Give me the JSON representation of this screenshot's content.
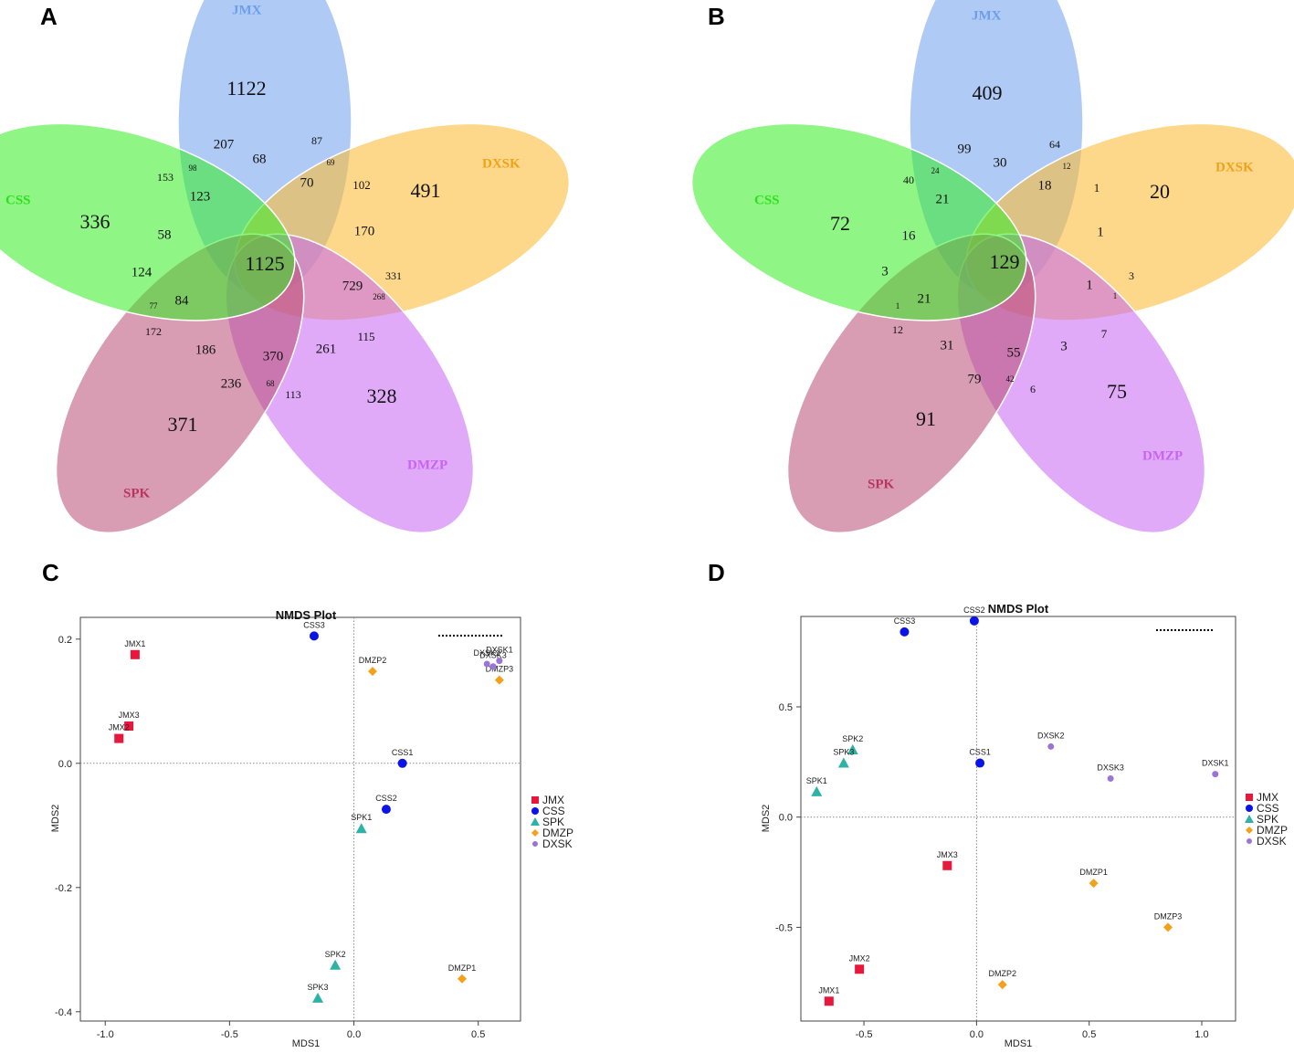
{
  "panels": [
    {
      "letter": "A"
    },
    {
      "letter": "B"
    },
    {
      "letter": "C"
    },
    {
      "letter": "D"
    }
  ],
  "chart_data": [
    {
      "type": "venn",
      "panel": "A",
      "sets": [
        {
          "name": "JMX",
          "color": "#6d9eeb",
          "unique": 1122
        },
        {
          "name": "DXSK",
          "color": "#fbbc3c",
          "unique": 491
        },
        {
          "name": "DMZP",
          "color": "#c764f2",
          "unique": 328
        },
        {
          "name": "SPK",
          "color": "#b84d72",
          "unique": 371
        },
        {
          "name": "CSS",
          "color": "#33ee22",
          "unique": 336
        }
      ],
      "core": 1125,
      "regions": [
        {
          "label": "207",
          "size": "m"
        },
        {
          "label": "87",
          "size": "s"
        },
        {
          "label": "153",
          "size": "s"
        },
        {
          "label": "98",
          "size": "xs"
        },
        {
          "label": "68",
          "size": "m"
        },
        {
          "label": "69",
          "size": "xs"
        },
        {
          "label": "102",
          "size": "s"
        },
        {
          "label": "123",
          "size": "m"
        },
        {
          "label": "70",
          "size": "m"
        },
        {
          "label": "58",
          "size": "m"
        },
        {
          "label": "170",
          "size": "m"
        },
        {
          "label": "124",
          "size": "m"
        },
        {
          "label": "729",
          "size": "m"
        },
        {
          "label": "331",
          "size": "s"
        },
        {
          "label": "77",
          "size": "xs"
        },
        {
          "label": "84",
          "size": "m"
        },
        {
          "label": "268",
          "size": "xs"
        },
        {
          "label": "172",
          "size": "s"
        },
        {
          "label": "186",
          "size": "m"
        },
        {
          "label": "370",
          "size": "m"
        },
        {
          "label": "261",
          "size": "m"
        },
        {
          "label": "115",
          "size": "s"
        },
        {
          "label": "236",
          "size": "m"
        },
        {
          "label": "68",
          "size": "xs"
        },
        {
          "label": "113",
          "size": "s"
        }
      ]
    },
    {
      "type": "venn",
      "panel": "B",
      "sets": [
        {
          "name": "JMX",
          "color": "#6d9eeb",
          "unique": 409
        },
        {
          "name": "DXSK",
          "color": "#fbbc3c",
          "unique": 20
        },
        {
          "name": "DMZP",
          "color": "#c764f2",
          "unique": 75
        },
        {
          "name": "SPK",
          "color": "#b84d72",
          "unique": 91
        },
        {
          "name": "CSS",
          "color": "#33ee22",
          "unique": 72
        }
      ],
      "core": 129,
      "regions": [
        {
          "label": "99",
          "size": "m"
        },
        {
          "label": "64",
          "size": "s"
        },
        {
          "label": "40",
          "size": "s"
        },
        {
          "label": "24",
          "size": "xs"
        },
        {
          "label": "30",
          "size": "m"
        },
        {
          "label": "12",
          "size": "xs"
        },
        {
          "label": "1",
          "size": "s"
        },
        {
          "label": "21",
          "size": "m"
        },
        {
          "label": "18",
          "size": "m"
        },
        {
          "label": "16",
          "size": "m"
        },
        {
          "label": "1",
          "size": "m"
        },
        {
          "label": "3",
          "size": "m"
        },
        {
          "label": "1",
          "size": "m"
        },
        {
          "label": "3",
          "size": "s"
        },
        {
          "label": "1",
          "size": "xs"
        },
        {
          "label": "21",
          "size": "m"
        },
        {
          "label": "1",
          "size": "xs"
        },
        {
          "label": "12",
          "size": "s"
        },
        {
          "label": "31",
          "size": "m"
        },
        {
          "label": "55",
          "size": "m"
        },
        {
          "label": "3",
          "size": "m"
        },
        {
          "label": "7",
          "size": "s"
        },
        {
          "label": "79",
          "size": "m"
        },
        {
          "label": "42",
          "size": "xs"
        },
        {
          "label": "6",
          "size": "s"
        }
      ]
    },
    {
      "type": "scatter",
      "panel": "C",
      "title": "NMDS Plot",
      "xlabel": "MDS1",
      "ylabel": "MDS2",
      "xlim": [
        -1.1,
        0.67
      ],
      "ylim": [
        -0.415,
        0.235
      ],
      "xticks": [
        "-1.0",
        "-0.5",
        "0.0",
        "0.5"
      ],
      "yticks": [
        "-0.4",
        "-0.2",
        "0.0",
        "0.2"
      ],
      "xtick_values": [
        -1.0,
        -0.5,
        0.0,
        0.5
      ],
      "ytick_values": [
        -0.4,
        -0.2,
        0.0,
        0.2
      ],
      "points": [
        {
          "label": "JMX1",
          "group": "JMX",
          "x": -0.88,
          "y": 0.175
        },
        {
          "label": "JMX3",
          "group": "JMX",
          "x": -0.905,
          "y": 0.06
        },
        {
          "label": "JMX2",
          "group": "JMX",
          "x": -0.945,
          "y": 0.04
        },
        {
          "label": "CSS3",
          "group": "CSS",
          "x": -0.16,
          "y": 0.205
        },
        {
          "label": "CSS1",
          "group": "CSS",
          "x": 0.195,
          "y": 0.0
        },
        {
          "label": "CSS2",
          "group": "CSS",
          "x": 0.13,
          "y": -0.074
        },
        {
          "label": "SPK1",
          "group": "SPK",
          "x": 0.03,
          "y": -0.105
        },
        {
          "label": "SPK2",
          "group": "SPK",
          "x": -0.075,
          "y": -0.325
        },
        {
          "label": "SPK3",
          "group": "SPK",
          "x": -0.145,
          "y": -0.378
        },
        {
          "label": "DMZP2",
          "group": "DMZP",
          "x": 0.075,
          "y": 0.148
        },
        {
          "label": "DMZP3",
          "group": "DMZP",
          "x": 0.585,
          "y": 0.134
        },
        {
          "label": "DMZP1",
          "group": "DMZP",
          "x": 0.435,
          "y": -0.347
        },
        {
          "label": "DXSK1",
          "group": "DXSK",
          "x": 0.585,
          "y": 0.165
        },
        {
          "label": "DXSK2",
          "group": "DXSK",
          "x": 0.535,
          "y": 0.16
        },
        {
          "label": "DXSK3",
          "group": "DXSK",
          "x": 0.56,
          "y": 0.156
        }
      ],
      "legend": [
        "JMX",
        "CSS",
        "SPK",
        "DMZP",
        "DXSK"
      ]
    },
    {
      "type": "scatter",
      "panel": "D",
      "title": "NMDS Plot",
      "xlabel": "MDS1",
      "ylabel": "MDS2",
      "xlim": [
        -0.78,
        1.15
      ],
      "ylim": [
        -0.925,
        0.91
      ],
      "xticks": [
        "-0.5",
        "0.0",
        "0.5",
        "1.0"
      ],
      "yticks": [
        "-0.5",
        "0.0",
        "0.5"
      ],
      "xtick_values": [
        -0.5,
        0.0,
        0.5,
        1.0
      ],
      "ytick_values": [
        -0.5,
        0.0,
        0.5
      ],
      "points": [
        {
          "label": "CSS3",
          "group": "CSS",
          "x": -0.32,
          "y": 0.84
        },
        {
          "label": "CSS2",
          "group": "CSS",
          "x": -0.01,
          "y": 0.89
        },
        {
          "label": "CSS1",
          "group": "CSS",
          "x": 0.015,
          "y": 0.245
        },
        {
          "label": "SPK2",
          "group": "SPK",
          "x": -0.55,
          "y": 0.305
        },
        {
          "label": "SPK3",
          "group": "SPK",
          "x": -0.59,
          "y": 0.245
        },
        {
          "label": "SPK1",
          "group": "SPK",
          "x": -0.71,
          "y": 0.115
        },
        {
          "label": "DXSK2",
          "group": "DXSK",
          "x": 0.33,
          "y": 0.32
        },
        {
          "label": "DXSK3",
          "group": "DXSK",
          "x": 0.595,
          "y": 0.175
        },
        {
          "label": "DXSK1",
          "group": "DXSK",
          "x": 1.06,
          "y": 0.195
        },
        {
          "label": "JMX3",
          "group": "JMX",
          "x": -0.13,
          "y": -0.22
        },
        {
          "label": "JMX2",
          "group": "JMX",
          "x": -0.52,
          "y": -0.69
        },
        {
          "label": "JMX1",
          "group": "JMX",
          "x": -0.655,
          "y": -0.835
        },
        {
          "label": "DMZP1",
          "group": "DMZP",
          "x": 0.52,
          "y": -0.3
        },
        {
          "label": "DMZP3",
          "group": "DMZP",
          "x": 0.85,
          "y": -0.5
        },
        {
          "label": "DMZP2",
          "group": "DMZP",
          "x": 0.115,
          "y": -0.76
        }
      ],
      "legend": [
        "JMX",
        "CSS",
        "SPK",
        "DMZP",
        "DXSK"
      ]
    }
  ],
  "group_colors": {
    "JMX": "#e8183c",
    "CSS": "#0a14e6",
    "SPK": "#2eb2a5",
    "DMZP": "#f5a01a",
    "DXSK": "#9b74d6"
  },
  "set_label_colors": {
    "JMX": "#6d9eeb",
    "DXSK": "#f0a21b",
    "DMZP": "#c764f2",
    "SPK": "#b8355f",
    "CSS": "#2ee01a"
  }
}
